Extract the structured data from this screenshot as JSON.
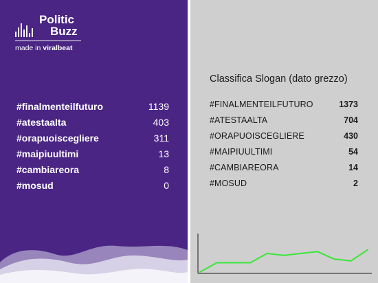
{
  "brand": {
    "name_line1": "Politic",
    "name_line2": "Buzz",
    "tagline_prefix": "made in ",
    "tagline_brand": "viralbeat"
  },
  "left_list": {
    "items": [
      {
        "tag": "#finalmenteilfuturo",
        "value": "1139"
      },
      {
        "tag": "#atestaalta",
        "value": "403"
      },
      {
        "tag": "#orapuoiscegliere",
        "value": "311"
      },
      {
        "tag": "#maipiuultimi",
        "value": "13"
      },
      {
        "tag": "#cambiareora",
        "value": "8"
      },
      {
        "tag": "#mosud",
        "value": "0"
      }
    ]
  },
  "right_panel": {
    "title": "Classifica Slogan (dato grezzo)",
    "items": [
      {
        "tag": "#FINALMENTEILFUTURO",
        "value": "1373"
      },
      {
        "tag": "#ATESTAALTA",
        "value": "704"
      },
      {
        "tag": "#ORAPUOISCEGLIERE",
        "value": "430"
      },
      {
        "tag": "#MAIPIUULTIMI",
        "value": "54"
      },
      {
        "tag": "#CAMBIAREORA",
        "value": "14"
      },
      {
        "tag": "#MOSUD",
        "value": "2"
      }
    ]
  },
  "colors": {
    "left_bg": "#4a2584",
    "right_bg": "#cfcfcf",
    "line": "#39e639"
  },
  "chart_data": {
    "type": "line",
    "x": [
      1,
      2,
      3,
      4,
      5,
      6,
      7,
      8,
      9,
      10,
      11
    ],
    "series": [
      {
        "values": [
          0,
          5,
          5,
          5,
          10,
          9,
          10,
          11,
          7,
          6,
          12
        ]
      }
    ],
    "ylim": [
      0,
      20
    ],
    "grid": false
  }
}
